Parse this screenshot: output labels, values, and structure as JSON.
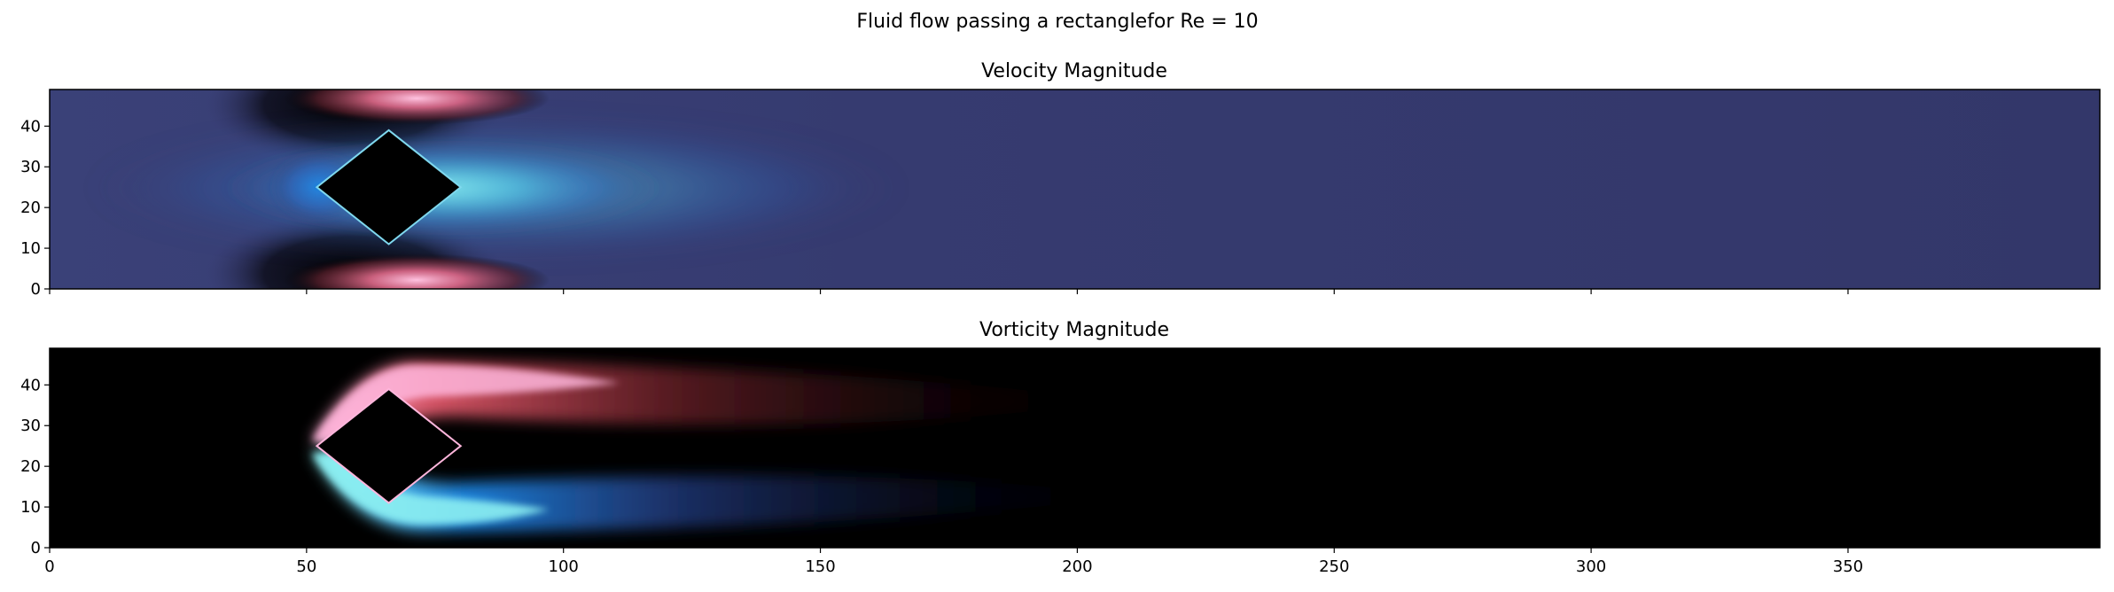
{
  "figure": {
    "suptitle": "Fluid flow passing a rectanglefor Re = 10"
  },
  "chart_data": [
    {
      "type": "heatmap",
      "title": "Velocity Magnitude",
      "xlabel": "",
      "ylabel": "",
      "xlim": [
        0,
        399
      ],
      "ylim": [
        0,
        49
      ],
      "x_ticks": [
        0,
        50,
        100,
        150,
        200,
        250,
        300,
        350
      ],
      "x_tick_labels_shown": false,
      "y_ticks": [
        0,
        10,
        20,
        30,
        40
      ],
      "colormap": "diverging black-centered (cyan-blue to black to red-pink)",
      "obstacle": {
        "shape": "diamond",
        "vertices": [
          [
            52,
            25
          ],
          [
            66,
            39
          ],
          [
            80,
            25
          ],
          [
            66,
            11
          ]
        ],
        "color": "#000000"
      },
      "field_features": [
        {
          "name": "upstream-stagnation-blue",
          "x": 52,
          "y": 25,
          "color": "#1e88e5"
        },
        {
          "name": "wake-core-cyan",
          "x": 95,
          "y": 25,
          "color": "#86e8ee"
        },
        {
          "name": "top-accel-pink",
          "x": 72,
          "y": 45,
          "color": "#ff9fcf"
        },
        {
          "name": "bottom-accel-pink",
          "x": 72,
          "y": 4,
          "color": "#ff9fcf"
        },
        {
          "name": "background",
          "color": "#34386a"
        }
      ]
    },
    {
      "type": "heatmap",
      "title": "Vorticity Magnitude",
      "xlabel": "",
      "ylabel": "",
      "xlim": [
        0,
        399
      ],
      "ylim": [
        0,
        49
      ],
      "x_ticks": [
        0,
        50,
        100,
        150,
        200,
        250,
        300,
        350
      ],
      "x_tick_labels": [
        "0",
        "50",
        "100",
        "150",
        "200",
        "250",
        "300",
        "350"
      ],
      "y_ticks": [
        0,
        10,
        20,
        30,
        40
      ],
      "colormap": "diverging black-centered (cyan-blue to black to red-pink)",
      "obstacle": {
        "shape": "diamond",
        "vertices": [
          [
            52,
            25
          ],
          [
            66,
            39
          ],
          [
            80,
            25
          ],
          [
            66,
            11
          ]
        ],
        "color": "#000000"
      },
      "field_features": [
        {
          "name": "upper-shear-layer-positive",
          "x_range": [
            52,
            200
          ],
          "y": 37,
          "color": "#e0586a"
        },
        {
          "name": "lower-shear-layer-negative",
          "x_range": [
            52,
            210
          ],
          "y": 13,
          "color": "#1e88e5"
        },
        {
          "name": "background",
          "color": "#000000"
        }
      ]
    }
  ]
}
